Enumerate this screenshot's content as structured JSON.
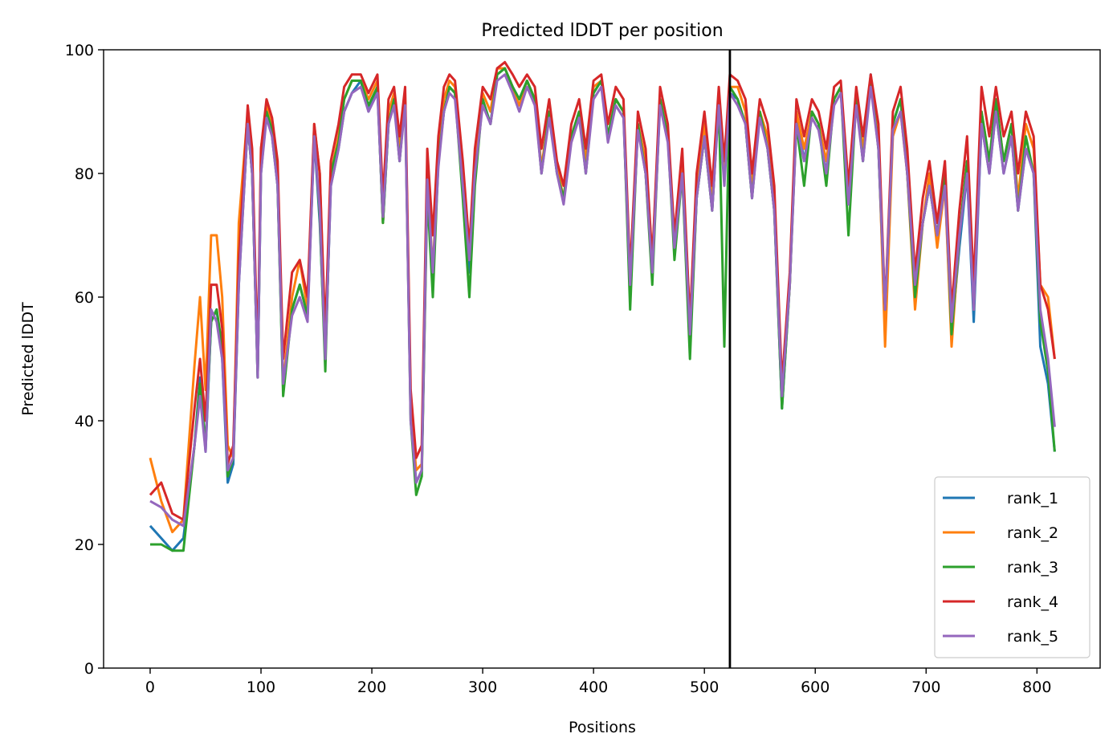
{
  "chart_data": {
    "type": "line",
    "title": "Predicted lDDT per position",
    "xlabel": "Positions",
    "ylabel": "Predicted lDDT",
    "xlim": [
      -42,
      857
    ],
    "ylim": [
      0,
      100
    ],
    "xticks": [
      0,
      100,
      200,
      300,
      400,
      500,
      600,
      700,
      800
    ],
    "yticks": [
      0,
      20,
      40,
      60,
      80,
      100
    ],
    "grid": false,
    "legend_position": "lower right",
    "vline_x": 523,
    "vline_color": "#000000",
    "x": [
      0,
      10,
      20,
      30,
      40,
      45,
      50,
      55,
      60,
      65,
      70,
      75,
      80,
      88,
      92,
      97,
      100,
      105,
      110,
      115,
      120,
      128,
      135,
      142,
      148,
      153,
      158,
      163,
      170,
      175,
      182,
      190,
      197,
      205,
      210,
      215,
      220,
      225,
      230,
      235,
      240,
      245,
      250,
      255,
      260,
      265,
      270,
      275,
      282,
      288,
      293,
      300,
      307,
      313,
      320,
      327,
      333,
      340,
      347,
      353,
      360,
      367,
      373,
      380,
      387,
      393,
      400,
      407,
      413,
      420,
      427,
      433,
      440,
      447,
      453,
      460,
      467,
      473,
      480,
      487,
      493,
      500,
      507,
      513,
      518,
      523,
      530,
      537,
      543,
      550,
      557,
      563,
      570,
      577,
      583,
      590,
      597,
      603,
      610,
      617,
      623,
      630,
      637,
      643,
      650,
      657,
      663,
      670,
      677,
      683,
      690,
      697,
      703,
      710,
      717,
      723,
      730,
      737,
      743,
      750,
      757,
      763,
      770,
      777,
      783,
      790,
      797,
      803,
      810,
      816
    ],
    "series": [
      {
        "name": "rank_1",
        "color": "#1f77b4",
        "values": [
          23,
          21,
          19,
          21,
          36,
          47,
          35,
          56,
          58,
          50,
          30,
          33,
          62,
          88,
          80,
          47,
          80,
          90,
          86,
          78,
          45,
          58,
          62,
          57,
          86,
          72,
          50,
          78,
          84,
          90,
          93,
          95,
          90,
          94,
          72,
          88,
          92,
          82,
          92,
          41,
          30,
          32,
          78,
          63,
          82,
          90,
          94,
          93,
          78,
          64,
          80,
          92,
          88,
          96,
          97,
          94,
          92,
          95,
          92,
          80,
          90,
          80,
          76,
          86,
          90,
          80,
          93,
          95,
          86,
          92,
          90,
          60,
          88,
          80,
          64,
          92,
          86,
          68,
          80,
          52,
          76,
          86,
          74,
          92,
          80,
          93,
          92,
          88,
          76,
          90,
          84,
          74,
          42,
          62,
          90,
          82,
          90,
          88,
          80,
          92,
          94,
          75,
          92,
          82,
          96,
          84,
          56,
          88,
          92,
          80,
          62,
          72,
          78,
          70,
          78,
          54,
          68,
          80,
          56,
          88,
          80,
          90,
          80,
          86,
          74,
          84,
          80,
          52,
          46,
          35
        ]
      },
      {
        "name": "rank_2",
        "color": "#ff7f0e",
        "values": [
          34,
          27,
          22,
          24,
          49,
          60,
          45,
          70,
          70,
          60,
          36,
          34,
          72,
          90,
          82,
          48,
          84,
          91,
          88,
          80,
          46,
          60,
          66,
          58,
          88,
          80,
          52,
          80,
          86,
          92,
          95,
          95,
          92,
          95,
          72,
          90,
          93,
          84,
          93,
          42,
          32,
          33,
          80,
          64,
          84,
          92,
          95,
          94,
          80,
          66,
          82,
          93,
          90,
          97,
          97,
          94,
          91,
          95,
          92,
          81,
          90,
          81,
          76,
          86,
          90,
          82,
          94,
          95,
          86,
          92,
          90,
          62,
          88,
          82,
          66,
          92,
          86,
          70,
          82,
          56,
          78,
          88,
          76,
          92,
          80,
          94,
          94,
          90,
          78,
          90,
          86,
          76,
          44,
          62,
          90,
          84,
          90,
          88,
          82,
          92,
          94,
          76,
          92,
          84,
          95,
          86,
          52,
          86,
          90,
          80,
          58,
          72,
          80,
          68,
          78,
          52,
          70,
          82,
          58,
          90,
          82,
          92,
          82,
          88,
          76,
          88,
          84,
          62,
          60,
          50
        ]
      },
      {
        "name": "rank_3",
        "color": "#2ca02c",
        "values": [
          20,
          20,
          19,
          19,
          36,
          46,
          36,
          56,
          58,
          52,
          31,
          34,
          63,
          88,
          80,
          47,
          81,
          90,
          87,
          78,
          44,
          58,
          62,
          57,
          87,
          73,
          48,
          80,
          85,
          92,
          95,
          95,
          91,
          94,
          72,
          88,
          92,
          82,
          92,
          40,
          28,
          31,
          77,
          60,
          82,
          90,
          94,
          93,
          76,
          60,
          78,
          92,
          88,
          96,
          97,
          94,
          92,
          95,
          92,
          80,
          90,
          80,
          76,
          86,
          90,
          80,
          93,
          95,
          86,
          92,
          90,
          58,
          88,
          80,
          62,
          92,
          86,
          66,
          80,
          50,
          76,
          86,
          74,
          92,
          52,
          94,
          92,
          88,
          76,
          90,
          84,
          74,
          42,
          62,
          88,
          78,
          90,
          88,
          78,
          92,
          94,
          70,
          92,
          82,
          95,
          84,
          58,
          88,
          92,
          80,
          60,
          72,
          78,
          70,
          80,
          54,
          70,
          82,
          60,
          90,
          82,
          92,
          82,
          88,
          74,
          86,
          80,
          56,
          48,
          35
        ]
      },
      {
        "name": "rank_4",
        "color": "#d62728",
        "values": [
          28,
          30,
          25,
          24,
          42,
          50,
          40,
          62,
          62,
          55,
          33,
          36,
          66,
          91,
          84,
          50,
          84,
          92,
          89,
          82,
          50,
          64,
          66,
          60,
          88,
          80,
          54,
          82,
          88,
          94,
          96,
          96,
          93,
          96,
          76,
          92,
          94,
          86,
          94,
          45,
          34,
          36,
          84,
          70,
          86,
          94,
          96,
          95,
          82,
          68,
          84,
          94,
          92,
          97,
          98,
          96,
          94,
          96,
          94,
          84,
          92,
          82,
          78,
          88,
          92,
          84,
          95,
          96,
          88,
          94,
          92,
          64,
          90,
          84,
          66,
          94,
          88,
          70,
          84,
          56,
          80,
          90,
          78,
          94,
          82,
          96,
          95,
          92,
          80,
          92,
          88,
          78,
          46,
          64,
          92,
          86,
          92,
          90,
          84,
          94,
          95,
          78,
          94,
          86,
          96,
          88,
          58,
          90,
          94,
          84,
          64,
          76,
          82,
          72,
          82,
          58,
          74,
          86,
          62,
          94,
          86,
          94,
          86,
          90,
          80,
          90,
          86,
          62,
          58,
          50
        ]
      },
      {
        "name": "rank_5",
        "color": "#9467bd",
        "values": [
          27,
          26,
          24,
          23,
          36,
          44,
          35,
          58,
          56,
          50,
          32,
          34,
          62,
          88,
          80,
          47,
          80,
          89,
          86,
          78,
          46,
          57,
          60,
          56,
          86,
          74,
          50,
          78,
          84,
          90,
          93,
          94,
          90,
          93,
          73,
          88,
          91,
          82,
          91,
          40,
          30,
          32,
          79,
          64,
          81,
          90,
          93,
          92,
          78,
          66,
          80,
          91,
          88,
          95,
          96,
          93,
          90,
          94,
          91,
          80,
          89,
          80,
          75,
          85,
          89,
          80,
          92,
          94,
          85,
          91,
          89,
          62,
          87,
          80,
          64,
          91,
          85,
          68,
          80,
          54,
          76,
          86,
          74,
          91,
          78,
          93,
          91,
          88,
          76,
          89,
          84,
          74,
          44,
          62,
          88,
          82,
          89,
          87,
          80,
          91,
          93,
          75,
          91,
          82,
          94,
          84,
          58,
          87,
          90,
          80,
          62,
          72,
          78,
          70,
          78,
          56,
          70,
          80,
          58,
          88,
          80,
          90,
          80,
          86,
          74,
          84,
          80,
          58,
          50,
          39
        ]
      }
    ]
  }
}
